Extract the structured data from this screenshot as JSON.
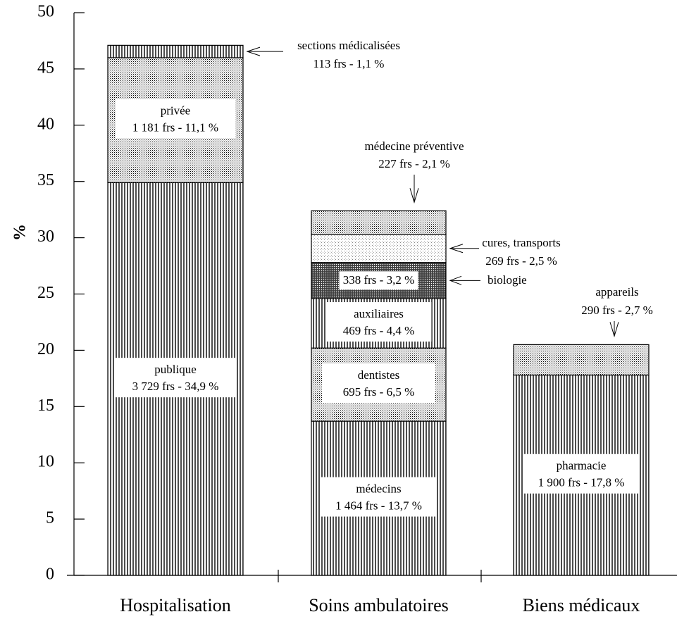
{
  "chart_data": {
    "type": "bar",
    "stacked": true,
    "title": "",
    "xlabel": "",
    "ylabel": "%",
    "ylim": [
      0,
      50
    ],
    "yticks": [
      0,
      5,
      10,
      15,
      20,
      25,
      30,
      35,
      40,
      45,
      50
    ],
    "grid": false,
    "legend": "none",
    "categories": [
      "Hospitalisation",
      "Soins ambulatoires",
      "Biens médicaux"
    ],
    "stacks": [
      {
        "category": "Hospitalisation",
        "segments": [
          {
            "name": "publique",
            "value": 34.9,
            "label_line1": "publique",
            "label_line2": "3 729 frs -  34,9 %",
            "pattern": "vertical"
          },
          {
            "name": "privée",
            "value": 11.1,
            "label_line1": "privée",
            "label_line2": "1 181 frs -  11,1 %",
            "pattern": "dots"
          },
          {
            "name": "sections médicalisées",
            "value": 1.1,
            "label_line1": "sections médicalisées",
            "label_line2": "113 frs -  1,1 %",
            "pattern": "vertical",
            "annotation": true
          }
        ]
      },
      {
        "category": "Soins ambulatoires",
        "segments": [
          {
            "name": "médecins",
            "value": 13.7,
            "label_line1": "médecins",
            "label_line2": "1 464 frs -  13,7 %",
            "pattern": "vertical"
          },
          {
            "name": "dentistes",
            "value": 6.5,
            "label_line1": "dentistes",
            "label_line2": "695 frs -  6,5 %",
            "pattern": "dots"
          },
          {
            "name": "auxiliaires",
            "value": 4.4,
            "label_line1": "auxiliaires",
            "label_line2": "469 frs -  4,4 %",
            "pattern": "vertical"
          },
          {
            "name": "biologie",
            "value": 3.2,
            "label_line1": "biologie",
            "label_line2": "338 frs -  3,2 %",
            "pattern": "dense"
          },
          {
            "name": "cures, transports",
            "value": 2.5,
            "label_line1": "cures, transports",
            "label_line2": "269 frs -  2,5 %",
            "pattern": "light",
            "annotation": true
          },
          {
            "name": "médecine préventive",
            "value": 2.1,
            "label_line1": "médecine préventive",
            "label_line2": "227 frs -  2,1 %",
            "pattern": "dots",
            "annotation": true
          }
        ]
      },
      {
        "category": "Biens médicaux",
        "segments": [
          {
            "name": "pharmacie",
            "value": 17.8,
            "label_line1": "pharmacie",
            "label_line2": "1 900 frs -  17,8 %",
            "pattern": "vertical"
          },
          {
            "name": "appareils",
            "value": 2.7,
            "label_line1": "appareils",
            "label_line2": "290 frs -  2,7 %",
            "pattern": "dots",
            "annotation": true
          }
        ]
      }
    ]
  }
}
